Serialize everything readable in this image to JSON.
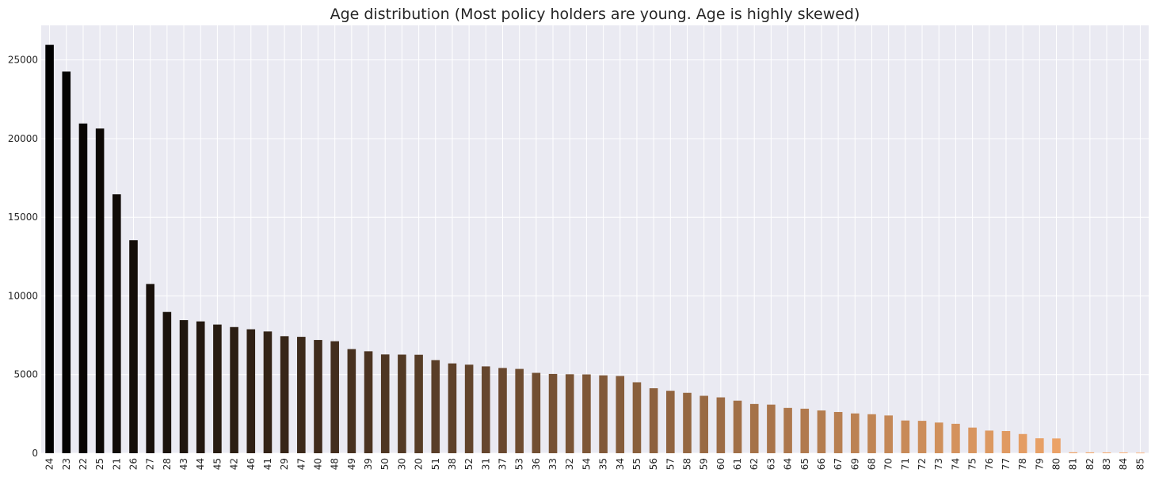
{
  "chart_data": {
    "type": "bar",
    "title": "Age distribution (Most policy holders are young. Age is highly skewed)",
    "xlabel": "",
    "ylabel": "",
    "ylim": [
      0,
      27200
    ],
    "yticks": [
      0,
      5000,
      10000,
      15000,
      20000,
      25000
    ],
    "grid": true,
    "legend": "none",
    "colors": {
      "background": "#eaeaf2",
      "grid": "#ffffff",
      "bar_dark": "#000000",
      "bar_light": "#ffb070"
    },
    "categories": [
      "24",
      "23",
      "22",
      "25",
      "21",
      "26",
      "27",
      "28",
      "43",
      "44",
      "45",
      "42",
      "46",
      "41",
      "29",
      "47",
      "40",
      "48",
      "49",
      "39",
      "50",
      "30",
      "20",
      "51",
      "38",
      "52",
      "31",
      "37",
      "53",
      "36",
      "33",
      "32",
      "54",
      "35",
      "34",
      "55",
      "56",
      "57",
      "58",
      "59",
      "60",
      "61",
      "62",
      "63",
      "64",
      "65",
      "66",
      "67",
      "69",
      "68",
      "70",
      "71",
      "72",
      "73",
      "74",
      "75",
      "76",
      "77",
      "78",
      "79",
      "80",
      "81",
      "82",
      "83",
      "84",
      "85"
    ],
    "values": [
      25960,
      24260,
      20960,
      20640,
      16460,
      13540,
      10760,
      8980,
      8460,
      8380,
      8180,
      8020,
      7880,
      7740,
      7440,
      7400,
      7200,
      7120,
      6620,
      6480,
      6280,
      6270,
      6260,
      5920,
      5710,
      5630,
      5520,
      5420,
      5360,
      5110,
      5040,
      5020,
      5010,
      4950,
      4910,
      4510,
      4130,
      3970,
      3840,
      3650,
      3550,
      3340,
      3130,
      3090,
      2880,
      2830,
      2720,
      2620,
      2530,
      2480,
      2400,
      2080,
      2060,
      1950,
      1870,
      1630,
      1440,
      1410,
      1220,
      950,
      940,
      60,
      55,
      50,
      45,
      35
    ]
  }
}
